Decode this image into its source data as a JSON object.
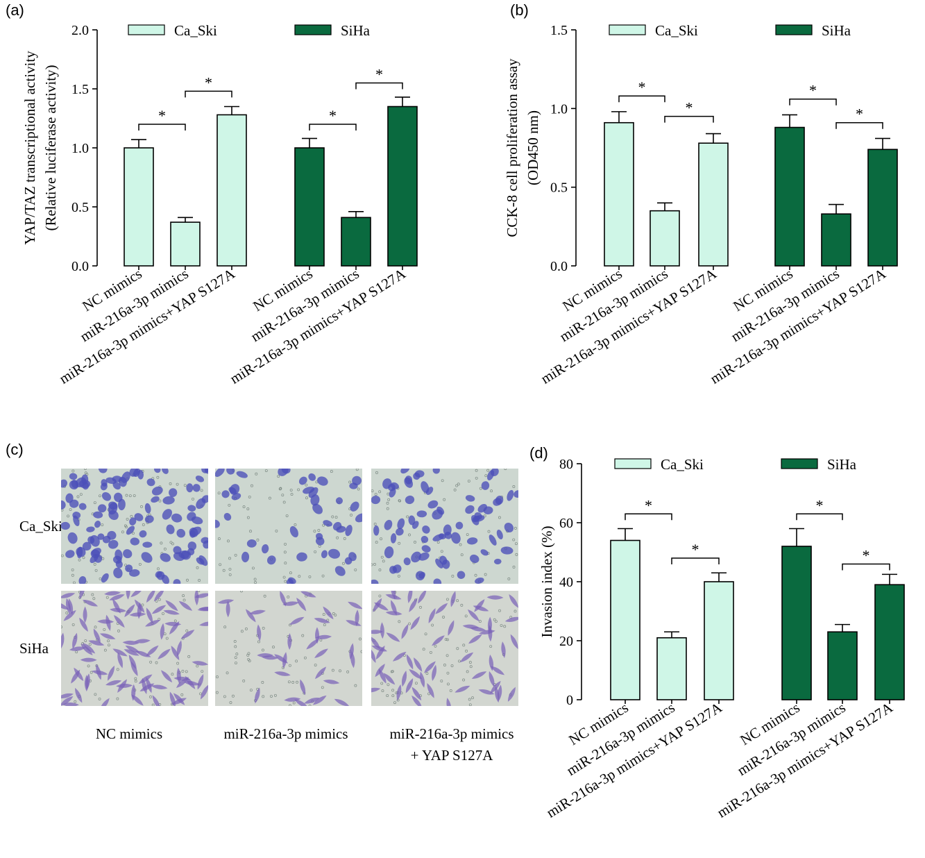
{
  "panels": {
    "a": "(a)",
    "b": "(b)",
    "c": "(c)",
    "d": "(d)"
  },
  "legend": {
    "caski": "Ca_Ski",
    "siha": "SiHa"
  },
  "colors": {
    "caski_fill": "#cff6e7",
    "siha_fill": "#0a6a3f",
    "axis": "#000000",
    "micro_bg": "#c8d3cb",
    "stain_caski": "#4c4fb8",
    "stain_siha": "#7a62b8"
  },
  "chart_data": [
    {
      "panel": "a",
      "type": "bar",
      "ylabel_lines": [
        "YAP/TAZ transcriptional activity",
        "(Relative luciferase activity)"
      ],
      "ylim": [
        0,
        2.0
      ],
      "yticks": [
        "0.0",
        "0.5",
        "1.0",
        "1.5",
        "2.0"
      ],
      "categories": [
        "NC mimics",
        "miR-216a-3p mimics",
        "miR-216a-3p mimics+YAP S127A"
      ],
      "series": [
        {
          "name": "Ca_Ski",
          "values": [
            1.0,
            0.37,
            1.28
          ],
          "errors": [
            0.07,
            0.04,
            0.07
          ]
        },
        {
          "name": "SiHa",
          "values": [
            1.0,
            0.41,
            1.35
          ],
          "errors": [
            0.08,
            0.05,
            0.08
          ]
        }
      ],
      "significance": [
        {
          "series": 0,
          "from": 0,
          "to": 1,
          "label": "*",
          "y": 1.2
        },
        {
          "series": 0,
          "from": 1,
          "to": 2,
          "label": "*",
          "y": 1.48
        },
        {
          "series": 1,
          "from": 0,
          "to": 1,
          "label": "*",
          "y": 1.2
        },
        {
          "series": 1,
          "from": 1,
          "to": 2,
          "label": "*",
          "y": 1.55
        }
      ]
    },
    {
      "panel": "b",
      "type": "bar",
      "ylabel_lines": [
        "CCK-8 cell proliferation assay",
        "(OD450 nm)"
      ],
      "ylim": [
        0,
        1.5
      ],
      "yticks": [
        "0.0",
        "0.5",
        "1.0",
        "1.5"
      ],
      "categories": [
        "NC mimics",
        "miR-216a-3p mimics",
        "miR-216a-3p mimics+YAP S127A"
      ],
      "series": [
        {
          "name": "Ca_Ski",
          "values": [
            0.91,
            0.35,
            0.78
          ],
          "errors": [
            0.07,
            0.05,
            0.06
          ]
        },
        {
          "name": "SiHa",
          "values": [
            0.88,
            0.33,
            0.74
          ],
          "errors": [
            0.08,
            0.06,
            0.07
          ]
        }
      ],
      "significance": [
        {
          "series": 0,
          "from": 0,
          "to": 1,
          "label": "*",
          "y": 1.08
        },
        {
          "series": 0,
          "from": 1,
          "to": 2,
          "label": "*",
          "y": 0.95
        },
        {
          "series": 1,
          "from": 0,
          "to": 1,
          "label": "*",
          "y": 1.06
        },
        {
          "series": 1,
          "from": 1,
          "to": 2,
          "label": "*",
          "y": 0.91
        }
      ]
    },
    {
      "panel": "d",
      "type": "bar",
      "ylabel_lines": [
        "Invasion index (%)"
      ],
      "ylim": [
        0,
        80
      ],
      "yticks": [
        "0",
        "20",
        "40",
        "60",
        "80"
      ],
      "categories": [
        "NC mimics",
        "miR-216a-3p mimics",
        "miR-216a-3p mimics+YAP S127A"
      ],
      "series": [
        {
          "name": "Ca_Ski",
          "values": [
            54,
            21,
            40
          ],
          "errors": [
            4,
            2,
            3
          ]
        },
        {
          "name": "SiHa",
          "values": [
            52,
            23,
            39
          ],
          "errors": [
            6,
            2.5,
            3.5
          ]
        }
      ],
      "significance": [
        {
          "series": 0,
          "from": 0,
          "to": 1,
          "label": "*",
          "y": 63
        },
        {
          "series": 0,
          "from": 1,
          "to": 2,
          "label": "*",
          "y": 48
        },
        {
          "series": 1,
          "from": 0,
          "to": 1,
          "label": "*",
          "y": 63
        },
        {
          "series": 1,
          "from": 1,
          "to": 2,
          "label": "*",
          "y": 46
        }
      ]
    }
  ],
  "micrographs": {
    "rows": [
      "Ca_Ski",
      "SiHa"
    ],
    "columns": [
      "NC mimics",
      "miR-216a-3p mimics",
      "miR-216a-3p mimics\n+ YAP S127A"
    ],
    "column_label_lines": [
      [
        "NC mimics"
      ],
      [
        "miR-216a-3p mimics"
      ],
      [
        "miR-216a-3p mimics",
        "+ YAP S127A"
      ]
    ],
    "cell_density": [
      [
        0.9,
        0.35,
        0.6
      ],
      [
        0.8,
        0.3,
        0.55
      ]
    ]
  }
}
